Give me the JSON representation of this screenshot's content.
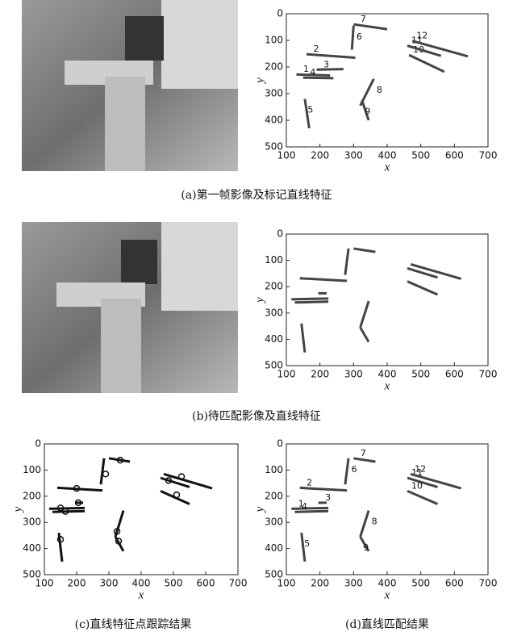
{
  "chart_data": [
    {
      "type": "segments",
      "caption": "(a)第一帧影像及标记直线特征",
      "xlabel": "x",
      "ylabel": "y",
      "xlim": [
        100,
        700
      ],
      "ylim": [
        0,
        500
      ],
      "y_inverted": true,
      "xticks": [
        100,
        200,
        300,
        400,
        500,
        600,
        700
      ],
      "yticks": [
        0,
        100,
        200,
        300,
        400,
        500
      ],
      "color": "#444444",
      "segments": [
        {
          "label": "1",
          "x": [
            130,
            230
          ],
          "y": [
            228,
            232
          ]
        },
        {
          "label": "2",
          "x": [
            160,
            305
          ],
          "y": [
            152,
            165
          ]
        },
        {
          "label": "3",
          "x": [
            190,
            270
          ],
          "y": [
            210,
            208
          ]
        },
        {
          "label": "4",
          "x": [
            150,
            240
          ],
          "y": [
            240,
            242
          ]
        },
        {
          "label": "5",
          "x": [
            155,
            168
          ],
          "y": [
            320,
            430
          ]
        },
        {
          "label": "6",
          "x": [
            300,
            295
          ],
          "y": [
            45,
            135
          ]
        },
        {
          "label": "7",
          "x": [
            300,
            400
          ],
          "y": [
            40,
            58
          ]
        },
        {
          "label": "8",
          "x": [
            360,
            320
          ],
          "y": [
            245,
            345
          ]
        },
        {
          "label": "9",
          "x": [
            325,
            345
          ],
          "y": [
            325,
            400
          ]
        },
        {
          "label": "10",
          "x": [
            465,
            570
          ],
          "y": [
            155,
            218
          ]
        },
        {
          "label": "11",
          "x": [
            460,
            560
          ],
          "y": [
            120,
            158
          ]
        },
        {
          "label": "12",
          "x": [
            475,
            640
          ],
          "y": [
            102,
            160
          ]
        }
      ]
    },
    {
      "type": "segments",
      "caption": "(b)待匹配影像及直线特征",
      "xlabel": "x",
      "ylabel": "y",
      "xlim": [
        100,
        700
      ],
      "ylim": [
        0,
        500
      ],
      "y_inverted": true,
      "xticks": [
        100,
        200,
        300,
        400,
        500,
        600,
        700
      ],
      "yticks": [
        0,
        100,
        200,
        300,
        400,
        500
      ],
      "color": "#444444",
      "segments": [
        {
          "x": [
            115,
            225
          ],
          "y": [
            248,
            245
          ]
        },
        {
          "x": [
            125,
            225
          ],
          "y": [
            260,
            257
          ]
        },
        {
          "x": [
            195,
            220
          ],
          "y": [
            225,
            225
          ]
        },
        {
          "x": [
            140,
            280
          ],
          "y": [
            168,
            178
          ]
        },
        {
          "x": [
            145,
            155
          ],
          "y": [
            340,
            450
          ]
        },
        {
          "x": [
            285,
            275
          ],
          "y": [
            55,
            155
          ]
        },
        {
          "x": [
            300,
            365
          ],
          "y": [
            55,
            68
          ]
        },
        {
          "x": [
            345,
            320
          ],
          "y": [
            255,
            355
          ]
        },
        {
          "x": [
            320,
            345
          ],
          "y": [
            355,
            410
          ]
        },
        {
          "x": [
            460,
            550
          ],
          "y": [
            130,
            165
          ]
        },
        {
          "x": [
            470,
            620
          ],
          "y": [
            115,
            170
          ]
        },
        {
          "x": [
            460,
            550
          ],
          "y": [
            180,
            230
          ]
        }
      ]
    },
    {
      "type": "segments",
      "caption": "(c)直线特征点跟踪结果",
      "xlabel": "x",
      "ylabel": "y",
      "xlim": [
        100,
        700
      ],
      "ylim": [
        0,
        500
      ],
      "y_inverted": true,
      "xticks": [
        100,
        200,
        300,
        400,
        500,
        600,
        700
      ],
      "yticks": [
        0,
        100,
        200,
        300,
        400,
        500
      ],
      "color": "#111111",
      "segments": [
        {
          "x": [
            115,
            225
          ],
          "y": [
            248,
            245
          ]
        },
        {
          "x": [
            125,
            225
          ],
          "y": [
            260,
            257
          ]
        },
        {
          "x": [
            195,
            220
          ],
          "y": [
            225,
            225
          ]
        },
        {
          "x": [
            140,
            280
          ],
          "y": [
            168,
            178
          ]
        },
        {
          "x": [
            145,
            155
          ],
          "y": [
            340,
            450
          ]
        },
        {
          "x": [
            285,
            275
          ],
          "y": [
            55,
            155
          ]
        },
        {
          "x": [
            300,
            365
          ],
          "y": [
            55,
            68
          ]
        },
        {
          "x": [
            345,
            320
          ],
          "y": [
            255,
            355
          ]
        },
        {
          "x": [
            320,
            345
          ],
          "y": [
            355,
            410
          ]
        },
        {
          "x": [
            460,
            550
          ],
          "y": [
            130,
            165
          ]
        },
        {
          "x": [
            470,
            620
          ],
          "y": [
            115,
            170
          ]
        },
        {
          "x": [
            460,
            550
          ],
          "y": [
            180,
            230
          ]
        }
      ],
      "points": {
        "x": [
          200,
          205,
          150,
          165,
          150,
          290,
          335,
          325,
          330,
          485,
          525,
          510
        ],
        "y": [
          170,
          225,
          245,
          258,
          365,
          115,
          62,
          335,
          372,
          140,
          125,
          195
        ]
      }
    },
    {
      "type": "segments",
      "caption": "(d)直线匹配结果",
      "xlabel": "x",
      "ylabel": "y",
      "xlim": [
        100,
        700
      ],
      "ylim": [
        0,
        500
      ],
      "y_inverted": true,
      "xticks": [
        100,
        200,
        300,
        400,
        500,
        600,
        700
      ],
      "yticks": [
        0,
        100,
        200,
        300,
        400,
        500
      ],
      "color": "#444444",
      "segments": [
        {
          "label": "1",
          "x": [
            115,
            225
          ],
          "y": [
            248,
            245
          ]
        },
        {
          "label": "4",
          "x": [
            125,
            225
          ],
          "y": [
            260,
            257
          ]
        },
        {
          "label": "3",
          "x": [
            195,
            220
          ],
          "y": [
            225,
            225
          ]
        },
        {
          "label": "2",
          "x": [
            140,
            280
          ],
          "y": [
            168,
            178
          ]
        },
        {
          "label": "5",
          "x": [
            145,
            155
          ],
          "y": [
            340,
            450
          ]
        },
        {
          "label": "6",
          "x": [
            285,
            275
          ],
          "y": [
            55,
            155
          ]
        },
        {
          "label": "7",
          "x": [
            300,
            365
          ],
          "y": [
            55,
            68
          ]
        },
        {
          "label": "8",
          "x": [
            345,
            320
          ],
          "y": [
            255,
            355
          ]
        },
        {
          "label": "9",
          "x": [
            320,
            345
          ],
          "y": [
            355,
            410
          ]
        },
        {
          "label": "11",
          "x": [
            460,
            550
          ],
          "y": [
            130,
            165
          ]
        },
        {
          "label": "12",
          "x": [
            470,
            620
          ],
          "y": [
            115,
            170
          ]
        },
        {
          "label": "10",
          "x": [
            460,
            550
          ],
          "y": [
            180,
            230
          ]
        }
      ]
    }
  ]
}
